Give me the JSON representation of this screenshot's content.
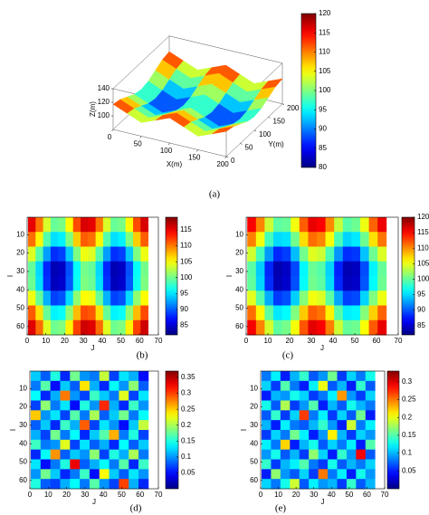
{
  "chart_data": [
    {
      "type": "surface",
      "caption": "(a)",
      "xlabel": "X(m)",
      "ylabel": "Y(m)",
      "zlabel": "Z(m)",
      "x": [
        0,
        25,
        50,
        75,
        100,
        125,
        150,
        175,
        200
      ],
      "y": [
        0,
        25,
        50,
        75,
        100,
        125,
        150,
        175,
        200
      ],
      "z": [
        [
          117,
          108.5,
          100,
          108.5,
          117,
          108.5,
          100,
          108.5,
          117
        ],
        [
          114.5,
          106,
          97.5,
          106,
          114.5,
          106,
          97.5,
          106,
          114.5
        ],
        [
          108.5,
          100,
          91.5,
          100,
          108.5,
          100,
          91.5,
          100,
          108.5
        ],
        [
          102.5,
          94,
          85.5,
          94,
          102.5,
          94,
          85.5,
          94,
          102.5
        ],
        [
          100,
          91.5,
          83,
          91.5,
          100,
          91.5,
          83,
          91.5,
          100
        ],
        [
          102.5,
          94,
          85.5,
          94,
          102.5,
          94,
          85.5,
          94,
          102.5
        ],
        [
          108.5,
          100,
          91.5,
          100,
          108.5,
          100,
          91.5,
          100,
          108.5
        ],
        [
          114.5,
          106,
          97.5,
          106,
          114.5,
          106,
          97.5,
          106,
          114.5
        ],
        [
          117,
          108.5,
          100,
          108.5,
          117,
          108.5,
          100,
          108.5,
          117
        ]
      ],
      "xlim": [
        0,
        200
      ],
      "ylim": [
        0,
        200
      ],
      "zlim": [
        80,
        140
      ],
      "xticks": [
        0,
        50,
        100,
        150,
        200
      ],
      "yticks": [
        0,
        50,
        100,
        150,
        200
      ],
      "zticks": [
        100,
        120,
        140
      ],
      "clim": [
        80,
        120
      ],
      "cticks": [
        80,
        85,
        90,
        95,
        100,
        105,
        110,
        115,
        120
      ]
    },
    {
      "type": "heatmap",
      "caption": "(b)",
      "xlabel": "J",
      "ylabel": "I",
      "x": [
        2.5,
        6.5,
        10.5,
        14.5,
        18.5,
        22.5,
        26.5,
        30.5,
        34.5,
        38.5,
        42.5,
        46.5,
        50.5,
        54.5,
        58.5,
        62.5
      ],
      "y": [
        4.5,
        12.5,
        20.5,
        28.5,
        36.5,
        44.5,
        52.5,
        60.5
      ],
      "z": [
        [
          115.2,
          110.2,
          103.7,
          99.6,
          100.2,
          105.2,
          111.7,
          115.8,
          115.2,
          110.2,
          103.7,
          99.6,
          100.2,
          105.2,
          111.7,
          115.8
        ],
        [
          110.4,
          105.4,
          98.9,
          94.8,
          95.4,
          100.4,
          106.9,
          111.0,
          110.4,
          105.4,
          98.9,
          94.8,
          95.4,
          100.4,
          106.9,
          111.0
        ],
        [
          103.9,
          98.9,
          92.4,
          88.3,
          88.9,
          93.9,
          100.4,
          104.5,
          103.9,
          98.9,
          92.4,
          88.3,
          88.9,
          93.9,
          100.4,
          104.5
        ],
        [
          99.5,
          94.5,
          88.0,
          83.9,
          84.5,
          89.5,
          96.0,
          100.1,
          99.5,
          94.5,
          88.0,
          83.9,
          84.5,
          89.5,
          96.0,
          100.1
        ],
        [
          99.8,
          94.8,
          88.3,
          84.2,
          84.8,
          89.8,
          96.3,
          100.4,
          99.8,
          94.8,
          88.3,
          84.2,
          84.8,
          89.8,
          96.3,
          100.4
        ],
        [
          104.6,
          99.6,
          93.1,
          89.0,
          89.6,
          94.6,
          101.1,
          105.2,
          104.6,
          99.6,
          93.1,
          89.0,
          89.6,
          94.6,
          101.1,
          105.2
        ],
        [
          111.1,
          106.1,
          99.6,
          95.5,
          96.1,
          101.1,
          107.6,
          111.7,
          111.1,
          106.1,
          99.6,
          95.5,
          96.1,
          101.1,
          107.6,
          111.7
        ],
        [
          115.5,
          110.5,
          104.0,
          99.9,
          100.5,
          105.5,
          112.0,
          116.1,
          115.5,
          110.5,
          104.0,
          99.9,
          100.5,
          105.5,
          112.0,
          116.1
        ]
      ],
      "xlim": [
        0,
        70
      ],
      "ylim": [
        64.5,
        0.5
      ],
      "xticks": [
        0,
        10,
        20,
        30,
        40,
        50,
        60,
        70
      ],
      "yticks": [
        10,
        20,
        30,
        40,
        50,
        60
      ],
      "clim": [
        82,
        119
      ],
      "cticks": [
        85,
        90,
        95,
        100,
        105,
        110,
        115
      ]
    },
    {
      "type": "heatmap",
      "caption": "(c)",
      "xlabel": "J",
      "ylabel": "I",
      "x": [
        2.5,
        6.5,
        10.5,
        14.5,
        18.5,
        22.5,
        26.5,
        30.5,
        34.5,
        38.5,
        42.5,
        46.5,
        50.5,
        54.5,
        58.5,
        62.5
      ],
      "y": [
        4.5,
        12.5,
        20.5,
        28.5,
        36.5,
        44.5,
        52.5,
        60.5
      ],
      "z": [
        [
          115.4,
          110.3,
          103.8,
          99.7,
          100.1,
          105.3,
          111.8,
          116.0,
          115.3,
          110.1,
          103.6,
          99.5,
          100.3,
          105.1,
          111.6,
          115.9
        ],
        [
          110.5,
          105.3,
          98.8,
          94.9,
          95.3,
          100.5,
          107.0,
          111.2,
          110.3,
          105.5,
          99.0,
          94.7,
          95.5,
          100.3,
          106.8,
          110.9
        ],
        [
          104.0,
          98.8,
          92.5,
          88.2,
          89.0,
          93.8,
          100.5,
          104.6,
          103.8,
          99.0,
          92.3,
          88.4,
          88.8,
          94.0,
          100.3,
          104.4
        ],
        [
          99.6,
          94.4,
          88.1,
          83.8,
          84.6,
          89.4,
          96.1,
          100.2,
          99.4,
          94.6,
          87.9,
          84.0,
          84.4,
          89.6,
          95.9,
          100.0
        ],
        [
          99.9,
          94.7,
          88.4,
          84.1,
          84.9,
          89.7,
          96.4,
          100.5,
          99.7,
          94.9,
          88.2,
          84.3,
          84.7,
          89.9,
          96.2,
          100.3
        ],
        [
          104.7,
          99.5,
          93.2,
          88.9,
          89.7,
          94.5,
          101.2,
          105.3,
          104.5,
          99.7,
          93.0,
          89.1,
          89.5,
          94.7,
          101.0,
          105.1
        ],
        [
          111.2,
          106.0,
          99.7,
          95.4,
          96.2,
          101.0,
          107.7,
          111.8,
          111.0,
          106.2,
          99.5,
          95.6,
          96.0,
          101.2,
          107.5,
          111.6
        ],
        [
          115.6,
          110.4,
          104.1,
          99.8,
          100.6,
          105.4,
          112.1,
          116.2,
          115.4,
          110.6,
          103.9,
          100.0,
          100.4,
          105.6,
          111.9,
          116.0
        ]
      ],
      "xlim": [
        0,
        70
      ],
      "ylim": [
        64.5,
        0.5
      ],
      "xticks": [
        0,
        10,
        20,
        30,
        40,
        50,
        60,
        70
      ],
      "yticks": [
        10,
        20,
        30,
        40,
        50,
        60
      ],
      "clim": [
        82,
        120
      ],
      "cticks": [
        85,
        90,
        95,
        100,
        105,
        110,
        115,
        120
      ]
    },
    {
      "type": "heatmap",
      "caption": "(d)",
      "xlabel": "J",
      "ylabel": "I",
      "x": [
        3.17,
        8.5,
        13.83,
        19.17,
        24.5,
        29.83,
        35.17,
        40.5,
        45.83,
        51.17,
        56.5,
        61.83
      ],
      "y": [
        3.17,
        8.5,
        13.83,
        19.17,
        24.5,
        29.83,
        35.17,
        40.5,
        45.83,
        51.17,
        56.5,
        61.83
      ],
      "z": [
        [
          0.12,
          0.08,
          0.15,
          0.06,
          0.18,
          0.1,
          0.09,
          0.21,
          0.07,
          0.13,
          0.11,
          0.05
        ],
        [
          0.09,
          0.17,
          0.05,
          0.12,
          0.08,
          0.24,
          0.11,
          0.06,
          0.14,
          0.1,
          0.19,
          0.08
        ],
        [
          0.14,
          0.06,
          0.11,
          0.28,
          0.1,
          0.07,
          0.16,
          0.12,
          0.09,
          0.22,
          0.07,
          0.13
        ],
        [
          0.07,
          0.19,
          0.09,
          0.13,
          0.05,
          0.15,
          0.1,
          0.31,
          0.11,
          0.06,
          0.16,
          0.1
        ],
        [
          0.25,
          0.1,
          0.13,
          0.07,
          0.17,
          0.09,
          0.2,
          0.08,
          0.12,
          0.18,
          0.09,
          0.14
        ],
        [
          0.08,
          0.12,
          0.06,
          0.16,
          0.11,
          0.29,
          0.07,
          0.13,
          0.1,
          0.05,
          0.12,
          0.21
        ],
        [
          0.11,
          0.07,
          0.18,
          0.09,
          0.14,
          0.06,
          0.12,
          0.17,
          0.26,
          0.09,
          0.15,
          0.07
        ],
        [
          0.16,
          0.09,
          0.1,
          0.22,
          0.07,
          0.13,
          0.08,
          0.11,
          0.06,
          0.14,
          0.08,
          0.12
        ],
        [
          0.06,
          0.14,
          0.27,
          0.08,
          0.12,
          0.1,
          0.19,
          0.07,
          0.15,
          0.11,
          0.2,
          0.09
        ],
        [
          0.13,
          0.05,
          0.09,
          0.15,
          0.33,
          0.08,
          0.11,
          0.14,
          0.09,
          0.17,
          0.06,
          0.16
        ],
        [
          0.1,
          0.18,
          0.12,
          0.06,
          0.09,
          0.16,
          0.05,
          0.23,
          0.12,
          0.08,
          0.13,
          0.1
        ],
        [
          0.15,
          0.08,
          0.07,
          0.11,
          0.14,
          0.09,
          0.17,
          0.1,
          0.07,
          0.3,
          0.11,
          0.06
        ]
      ],
      "xlim": [
        0,
        70
      ],
      "ylim": [
        64.5,
        0.5
      ],
      "xticks": [
        0,
        10,
        20,
        30,
        40,
        50,
        60,
        70
      ],
      "yticks": [
        10,
        20,
        30,
        40,
        50,
        60
      ],
      "clim": [
        0,
        0.37
      ],
      "cticks": [
        0.05,
        0.1,
        0.15,
        0.2,
        0.25,
        0.3,
        0.35
      ]
    },
    {
      "type": "heatmap",
      "caption": "(e)",
      "xlabel": "J",
      "ylabel": "I",
      "x": [
        3.17,
        8.5,
        13.83,
        19.17,
        24.5,
        29.83,
        35.17,
        40.5,
        45.83,
        51.17,
        56.5,
        61.83
      ],
      "y": [
        3.17,
        8.5,
        13.83,
        19.17,
        24.5,
        29.83,
        35.17,
        40.5,
        45.83,
        51.17,
        56.5,
        61.83
      ],
      "z": [
        [
          0.08,
          0.12,
          0.05,
          0.1,
          0.14,
          0.07,
          0.09,
          0.16,
          0.06,
          0.11,
          0.08,
          0.13
        ],
        [
          0.11,
          0.06,
          0.15,
          0.08,
          0.05,
          0.12,
          0.2,
          0.07,
          0.1,
          0.05,
          0.14,
          0.07
        ],
        [
          0.05,
          0.1,
          0.09,
          0.13,
          0.11,
          0.06,
          0.08,
          0.12,
          0.24,
          0.09,
          0.06,
          0.11
        ],
        [
          0.13,
          0.07,
          0.18,
          0.06,
          0.09,
          0.15,
          0.05,
          0.1,
          0.07,
          0.13,
          0.1,
          0.08
        ],
        [
          0.07,
          0.14,
          0.06,
          0.11,
          0.27,
          0.08,
          0.12,
          0.06,
          0.11,
          0.07,
          0.16,
          0.05
        ],
        [
          0.1,
          0.05,
          0.12,
          0.08,
          0.07,
          0.1,
          0.14,
          0.09,
          0.05,
          0.19,
          0.08,
          0.12
        ],
        [
          0.06,
          0.11,
          0.08,
          0.16,
          0.12,
          0.05,
          0.09,
          0.21,
          0.1,
          0.06,
          0.11,
          0.09
        ],
        [
          0.12,
          0.08,
          0.22,
          0.05,
          0.1,
          0.13,
          0.07,
          0.11,
          0.08,
          0.12,
          0.05,
          0.15
        ],
        [
          0.09,
          0.13,
          0.07,
          0.1,
          0.06,
          0.17,
          0.11,
          0.05,
          0.14,
          0.09,
          0.29,
          0.07
        ],
        [
          0.14,
          0.06,
          0.1,
          0.12,
          0.15,
          0.08,
          0.06,
          0.13,
          0.07,
          0.1,
          0.08,
          0.11
        ],
        [
          0.05,
          0.17,
          0.09,
          0.07,
          0.11,
          0.06,
          0.25,
          0.08,
          0.12,
          0.05,
          0.13,
          0.09
        ],
        [
          0.11,
          0.08,
          0.13,
          0.19,
          0.07,
          0.12,
          0.09,
          0.1,
          0.06,
          0.14,
          0.07,
          0.1
        ]
      ],
      "xlim": [
        0,
        70
      ],
      "ylim": [
        64.5,
        0.5
      ],
      "xticks": [
        0,
        10,
        20,
        30,
        40,
        50,
        60,
        70
      ],
      "yticks": [
        10,
        20,
        30,
        40,
        50,
        60
      ],
      "clim": [
        0,
        0.33
      ],
      "cticks": [
        0.05,
        0.1,
        0.15,
        0.2,
        0.25,
        0.3
      ]
    }
  ]
}
